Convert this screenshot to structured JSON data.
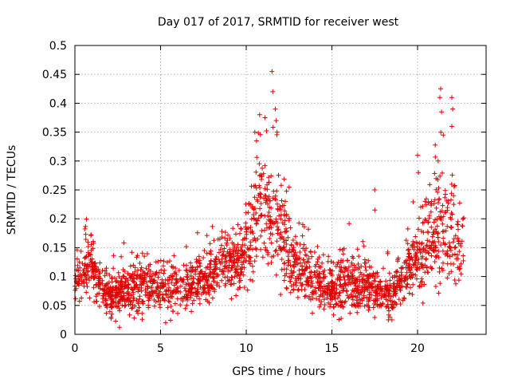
{
  "chart_data": {
    "type": "scatter",
    "title": "Day 017 of 2017, SRMTID for receiver west",
    "xlabel": "GPS time / hours",
    "ylabel": "SRMTID / TECUs",
    "xlim": [
      0,
      24
    ],
    "ylim": [
      0,
      0.5
    ],
    "xticks": [
      0,
      5,
      10,
      15,
      20
    ],
    "xtick_labels": [
      "0",
      "5",
      "10",
      "15",
      "20"
    ],
    "yticks": [
      0,
      0.05,
      0.1,
      0.15,
      0.2,
      0.25,
      0.3,
      0.35,
      0.4,
      0.45,
      0.5
    ],
    "ytick_labels": [
      "0",
      "0.05",
      "0.1",
      "0.15",
      "0.2",
      "0.25",
      "0.3",
      "0.35",
      "0.4",
      "0.45",
      "0.5"
    ],
    "grid": true,
    "marker": "+",
    "marker_color": "#e00000",
    "x_data_max": 22.7,
    "series": [
      {
        "name": "SRMTID",
        "envelope": [
          {
            "x": 0.0,
            "base": 0.085,
            "spread": 0.03
          },
          {
            "x": 0.5,
            "base": 0.105,
            "spread": 0.04
          },
          {
            "x": 1.0,
            "base": 0.125,
            "spread": 0.045
          },
          {
            "x": 1.3,
            "base": 0.1,
            "spread": 0.04
          },
          {
            "x": 1.8,
            "base": 0.065,
            "spread": 0.03
          },
          {
            "x": 3.0,
            "base": 0.07,
            "spread": 0.035
          },
          {
            "x": 4.0,
            "base": 0.085,
            "spread": 0.04
          },
          {
            "x": 5.0,
            "base": 0.075,
            "spread": 0.035
          },
          {
            "x": 6.0,
            "base": 0.08,
            "spread": 0.035
          },
          {
            "x": 7.0,
            "base": 0.08,
            "spread": 0.035
          },
          {
            "x": 8.0,
            "base": 0.1,
            "spread": 0.04
          },
          {
            "x": 8.7,
            "base": 0.13,
            "spread": 0.045
          },
          {
            "x": 9.5,
            "base": 0.12,
            "spread": 0.04
          },
          {
            "x": 10.2,
            "base": 0.15,
            "spread": 0.06
          },
          {
            "x": 10.8,
            "base": 0.22,
            "spread": 0.08
          },
          {
            "x": 11.5,
            "base": 0.21,
            "spread": 0.09
          },
          {
            "x": 12.0,
            "base": 0.17,
            "spread": 0.08
          },
          {
            "x": 12.6,
            "base": 0.12,
            "spread": 0.05
          },
          {
            "x": 13.5,
            "base": 0.1,
            "spread": 0.04
          },
          {
            "x": 14.5,
            "base": 0.075,
            "spread": 0.035
          },
          {
            "x": 16.0,
            "base": 0.085,
            "spread": 0.04
          },
          {
            "x": 17.0,
            "base": 0.08,
            "spread": 0.035
          },
          {
            "x": 18.5,
            "base": 0.065,
            "spread": 0.03
          },
          {
            "x": 19.5,
            "base": 0.11,
            "spread": 0.04
          },
          {
            "x": 20.3,
            "base": 0.15,
            "spread": 0.06
          },
          {
            "x": 21.0,
            "base": 0.17,
            "spread": 0.08
          },
          {
            "x": 21.5,
            "base": 0.19,
            "spread": 0.09
          },
          {
            "x": 22.0,
            "base": 0.17,
            "spread": 0.08
          },
          {
            "x": 22.7,
            "base": 0.14,
            "spread": 0.06
          }
        ],
        "outliers": [
          {
            "x": 11.5,
            "y": 0.455
          },
          {
            "x": 11.55,
            "y": 0.42
          },
          {
            "x": 11.7,
            "y": 0.39
          },
          {
            "x": 11.75,
            "y": 0.37
          },
          {
            "x": 10.6,
            "y": 0.335
          },
          {
            "x": 10.5,
            "y": 0.35
          },
          {
            "x": 11.1,
            "y": 0.375
          },
          {
            "x": 11.8,
            "y": 0.35
          },
          {
            "x": 12.5,
            "y": 0.255
          },
          {
            "x": 13.3,
            "y": 0.19
          },
          {
            "x": 17.5,
            "y": 0.25
          },
          {
            "x": 17.5,
            "y": 0.215
          },
          {
            "x": 21.35,
            "y": 0.425
          },
          {
            "x": 21.3,
            "y": 0.41
          },
          {
            "x": 21.4,
            "y": 0.385
          },
          {
            "x": 21.5,
            "y": 0.345
          },
          {
            "x": 22.0,
            "y": 0.41
          },
          {
            "x": 22.0,
            "y": 0.36
          },
          {
            "x": 22.05,
            "y": 0.39
          },
          {
            "x": 20.0,
            "y": 0.31
          },
          {
            "x": 20.05,
            "y": 0.28
          },
          {
            "x": 21.2,
            "y": 0.3
          },
          {
            "x": 22.1,
            "y": 0.24
          },
          {
            "x": 2.6,
            "y": 0.012
          },
          {
            "x": 5.3,
            "y": 0.02
          },
          {
            "x": 18.5,
            "y": 0.025
          }
        ]
      }
    ]
  }
}
